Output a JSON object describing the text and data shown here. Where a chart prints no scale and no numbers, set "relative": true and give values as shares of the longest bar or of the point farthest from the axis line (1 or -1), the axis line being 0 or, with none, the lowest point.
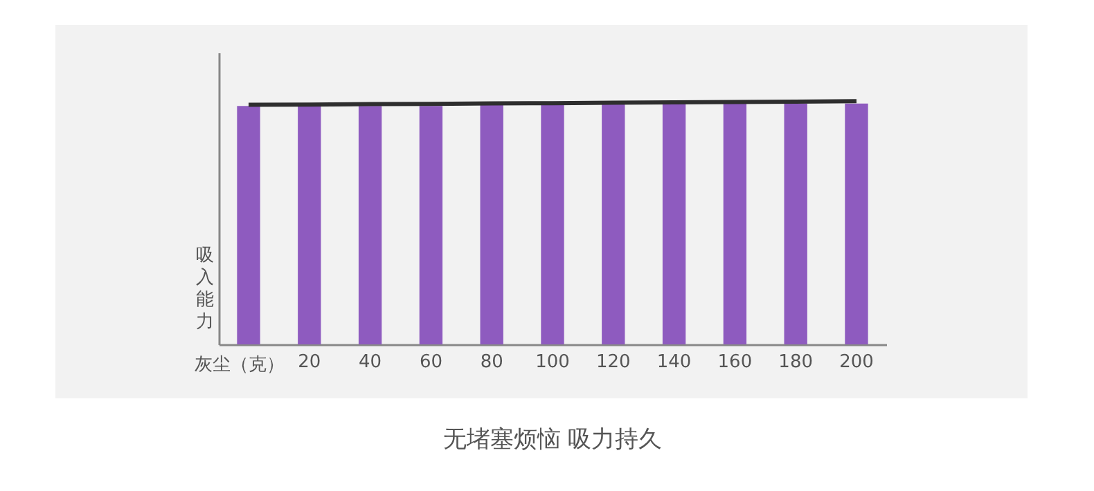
{
  "chart_data": {
    "type": "bar",
    "title": "无堵塞烦恼 吸力持久",
    "xlabel": "灰尘（克）",
    "ylabel": "吸入能力",
    "relative": true,
    "categories": [
      null,
      "20",
      "40",
      "60",
      "80",
      "100",
      "120",
      "140",
      "160",
      "180",
      "200"
    ],
    "series": [
      {
        "color": "#8e5bbf",
        "values": [
          0.98,
          0.98,
          0.98,
          0.98,
          0.99,
          0.99,
          0.99,
          0.99,
          0.99,
          0.99,
          0.99
        ]
      },
      {
        "type": "line",
        "color": "#2e2e2e",
        "values": [
          0.985,
          0.986,
          0.988,
          0.989,
          0.991,
          0.992,
          0.994,
          0.995,
          0.997,
          0.998,
          1
        ]
      }
    ],
    "grid": false,
    "marker": "none",
    "line_style": "solid"
  }
}
